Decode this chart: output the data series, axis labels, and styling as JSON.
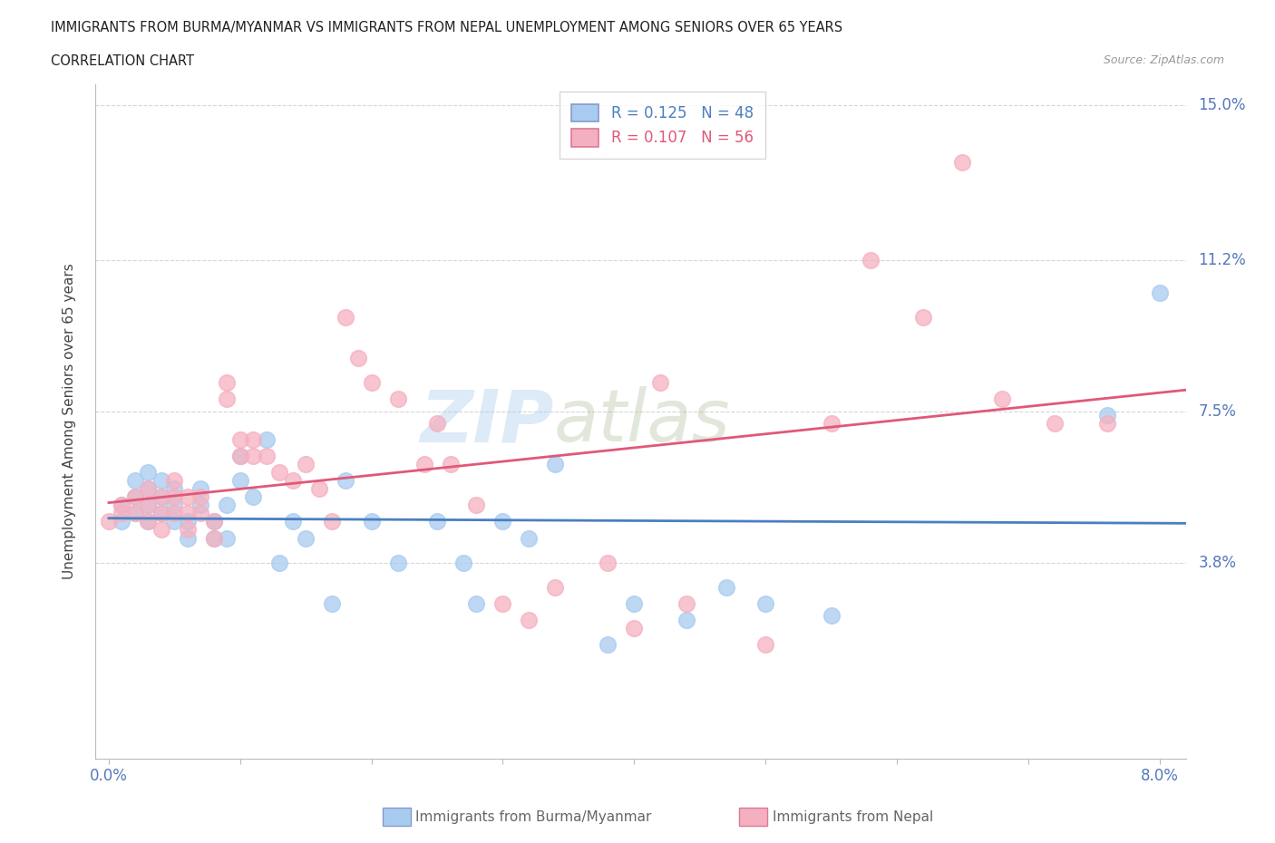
{
  "title_line1": "IMMIGRANTS FROM BURMA/MYANMAR VS IMMIGRANTS FROM NEPAL UNEMPLOYMENT AMONG SENIORS OVER 65 YEARS",
  "title_line2": "CORRELATION CHART",
  "source": "Source: ZipAtlas.com",
  "ylabel": "Unemployment Among Seniors over 65 years",
  "xlim": [
    -0.001,
    0.082
  ],
  "ylim": [
    -0.01,
    0.155
  ],
  "yticks": [
    0.038,
    0.075,
    0.112,
    0.15
  ],
  "ytick_labels": [
    "3.8%",
    "7.5%",
    "11.2%",
    "15.0%"
  ],
  "xticks": [
    0.0,
    0.01,
    0.02,
    0.03,
    0.04,
    0.05,
    0.06,
    0.07,
    0.08
  ],
  "legend_r1": "R = 0.125",
  "legend_n1": "N = 48",
  "legend_r2": "R = 0.107",
  "legend_n2": "N = 56",
  "color_blue": "#A8CCF0",
  "color_pink": "#F5B0C0",
  "color_blue_line": "#4A7FC0",
  "color_pink_line": "#E05878",
  "watermark_zip": "ZIP",
  "watermark_atlas": "atlas",
  "blue_x": [
    0.001,
    0.001,
    0.002,
    0.002,
    0.002,
    0.003,
    0.003,
    0.003,
    0.003,
    0.004,
    0.004,
    0.004,
    0.005,
    0.005,
    0.005,
    0.006,
    0.006,
    0.007,
    0.007,
    0.008,
    0.008,
    0.009,
    0.009,
    0.01,
    0.01,
    0.011,
    0.012,
    0.013,
    0.014,
    0.015,
    0.017,
    0.018,
    0.02,
    0.022,
    0.025,
    0.027,
    0.028,
    0.03,
    0.032,
    0.034,
    0.038,
    0.04,
    0.044,
    0.047,
    0.05,
    0.055,
    0.076,
    0.08
  ],
  "blue_y": [
    0.048,
    0.052,
    0.05,
    0.054,
    0.058,
    0.048,
    0.052,
    0.056,
    0.06,
    0.05,
    0.054,
    0.058,
    0.048,
    0.052,
    0.056,
    0.044,
    0.048,
    0.052,
    0.056,
    0.044,
    0.048,
    0.044,
    0.052,
    0.058,
    0.064,
    0.054,
    0.068,
    0.038,
    0.048,
    0.044,
    0.028,
    0.058,
    0.048,
    0.038,
    0.048,
    0.038,
    0.028,
    0.048,
    0.044,
    0.062,
    0.018,
    0.028,
    0.024,
    0.032,
    0.028,
    0.025,
    0.074,
    0.104
  ],
  "pink_x": [
    0.0,
    0.001,
    0.001,
    0.002,
    0.002,
    0.003,
    0.003,
    0.003,
    0.004,
    0.004,
    0.004,
    0.005,
    0.005,
    0.005,
    0.006,
    0.006,
    0.006,
    0.007,
    0.007,
    0.008,
    0.008,
    0.009,
    0.009,
    0.01,
    0.01,
    0.011,
    0.011,
    0.012,
    0.013,
    0.014,
    0.015,
    0.016,
    0.017,
    0.018,
    0.019,
    0.02,
    0.022,
    0.024,
    0.025,
    0.026,
    0.028,
    0.03,
    0.032,
    0.034,
    0.038,
    0.04,
    0.042,
    0.044,
    0.05,
    0.055,
    0.058,
    0.062,
    0.065,
    0.068,
    0.072,
    0.076
  ],
  "pink_y": [
    0.048,
    0.05,
    0.052,
    0.05,
    0.054,
    0.048,
    0.052,
    0.056,
    0.046,
    0.05,
    0.054,
    0.05,
    0.054,
    0.058,
    0.046,
    0.05,
    0.054,
    0.05,
    0.054,
    0.044,
    0.048,
    0.078,
    0.082,
    0.064,
    0.068,
    0.064,
    0.068,
    0.064,
    0.06,
    0.058,
    0.062,
    0.056,
    0.048,
    0.098,
    0.088,
    0.082,
    0.078,
    0.062,
    0.072,
    0.062,
    0.052,
    0.028,
    0.024,
    0.032,
    0.038,
    0.022,
    0.082,
    0.028,
    0.018,
    0.072,
    0.112,
    0.098,
    0.136,
    0.078,
    0.072,
    0.072
  ]
}
